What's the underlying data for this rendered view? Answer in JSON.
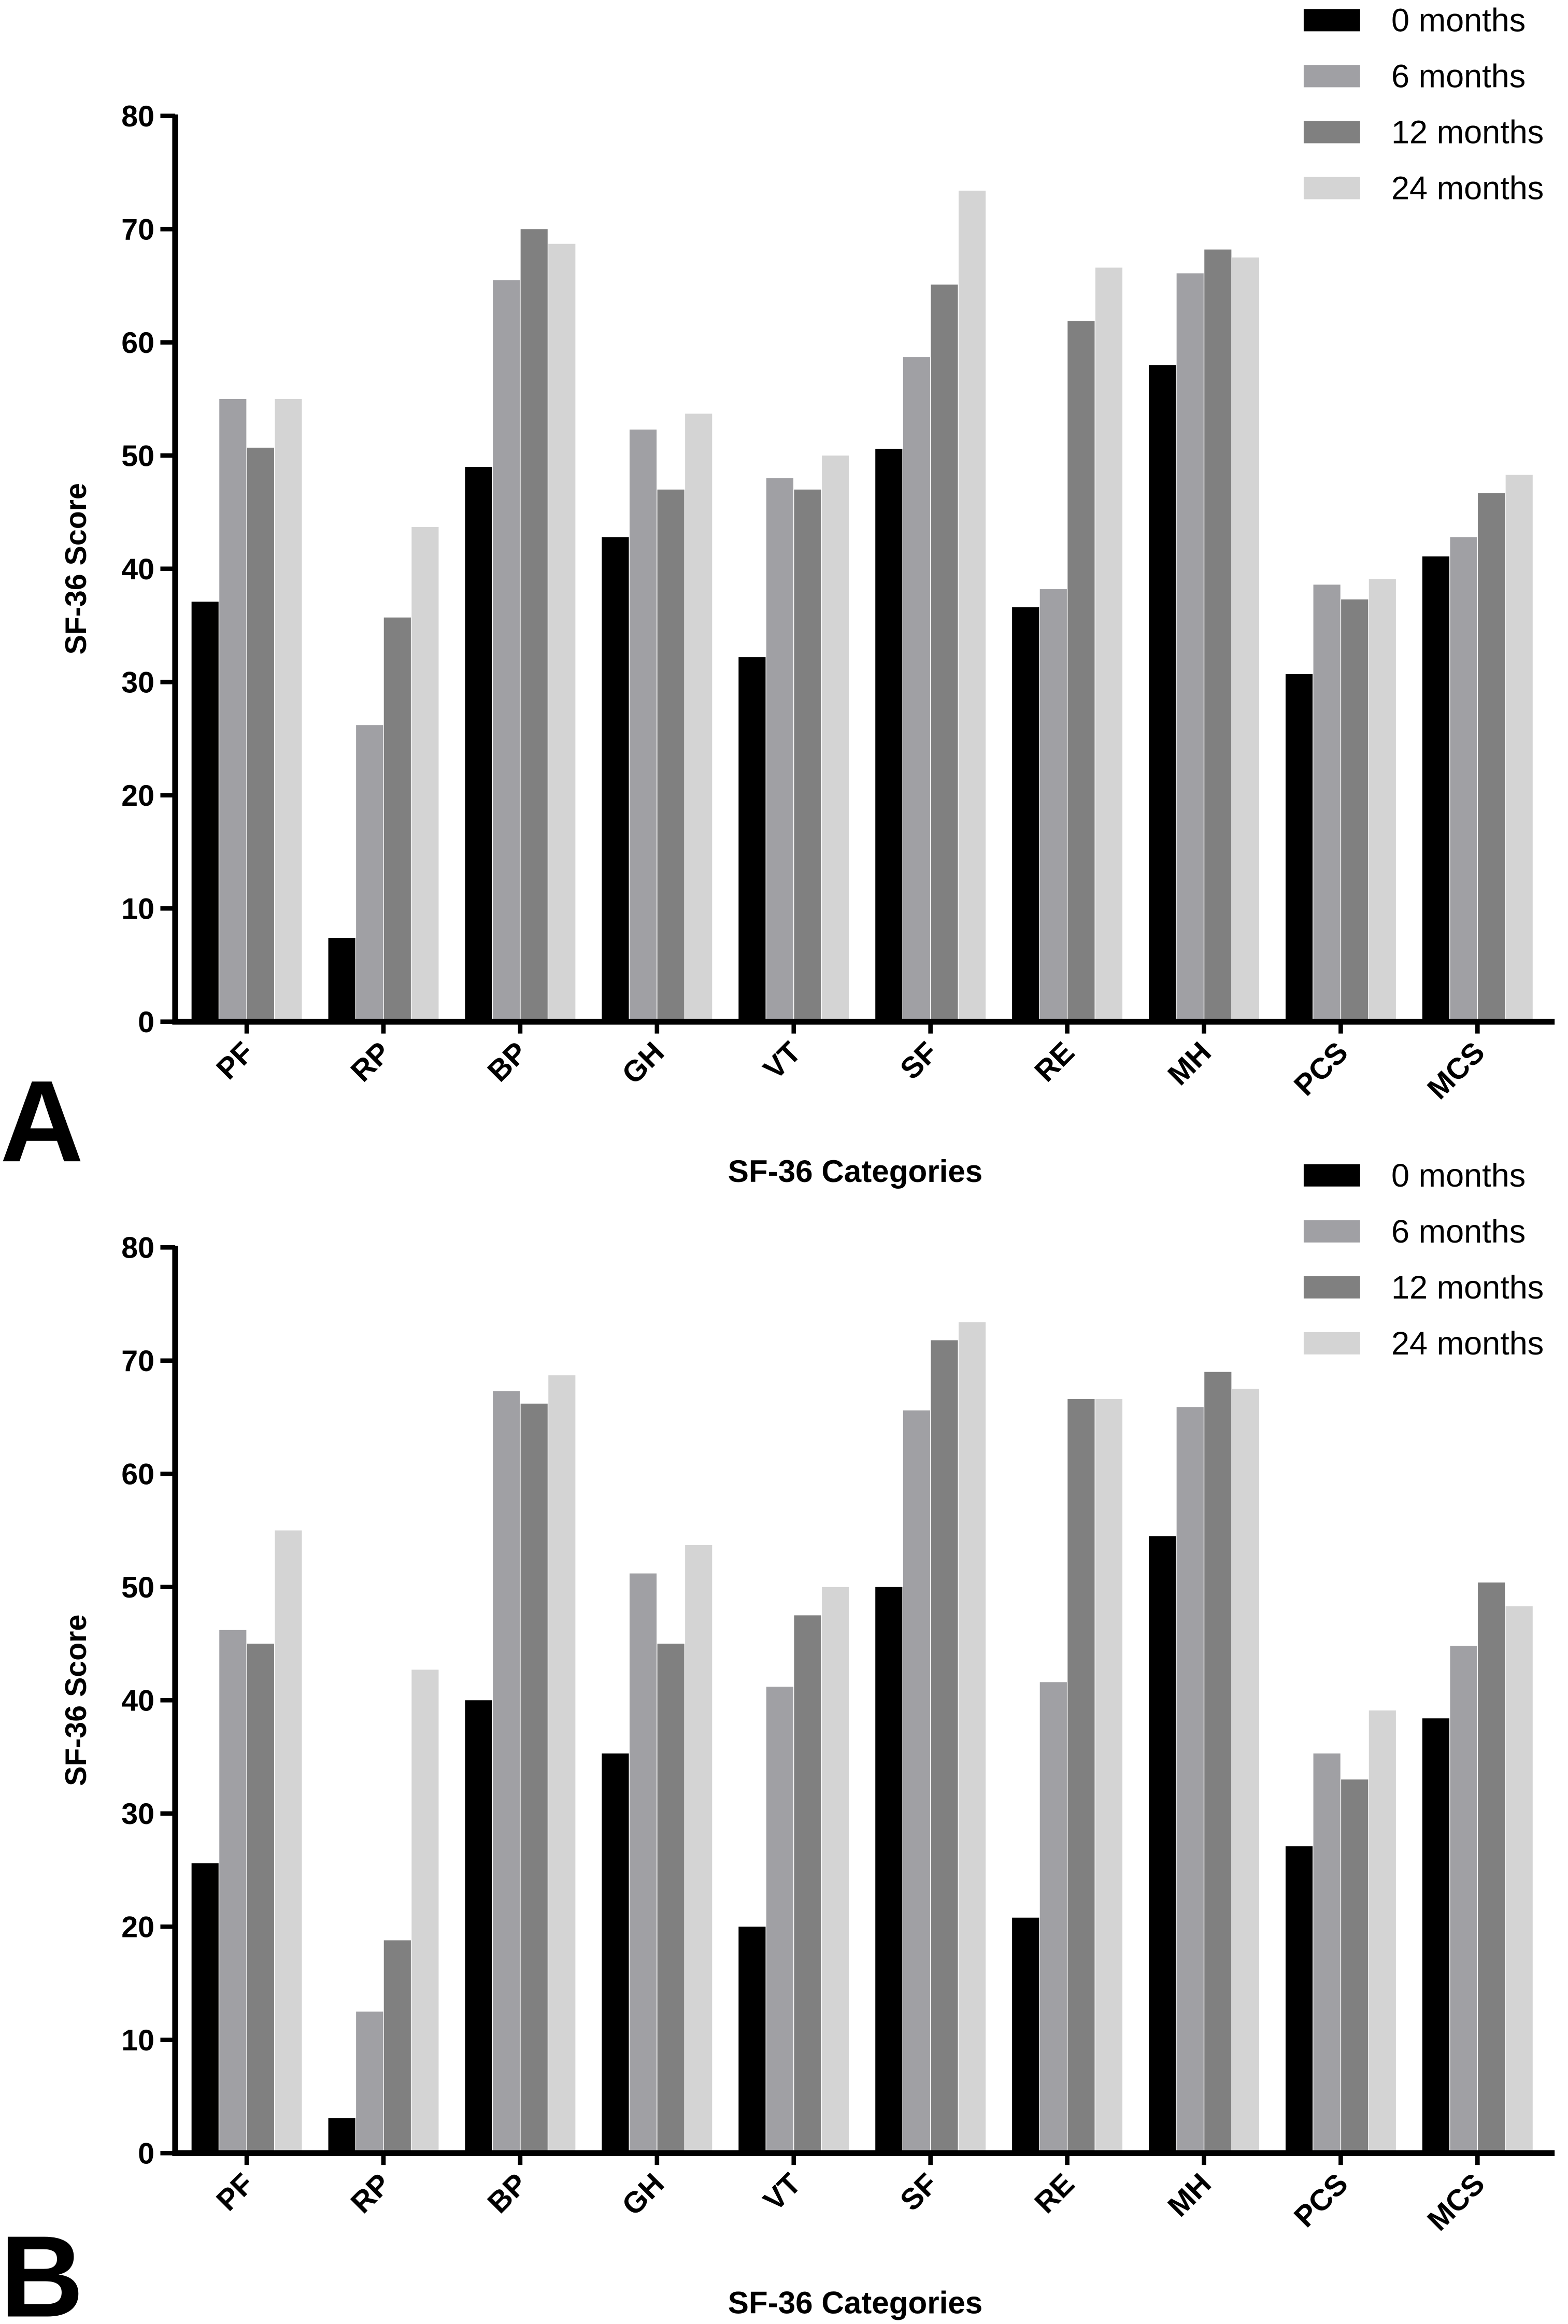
{
  "chart_data": [
    {
      "type": "bar",
      "panel_label": "A",
      "xlabel": "SF-36 Categories",
      "ylabel": "SF-36 Score",
      "ylim": [
        0,
        80
      ],
      "yticks": [
        0,
        10,
        20,
        30,
        40,
        50,
        60,
        70,
        80
      ],
      "legend_position": "top-right",
      "categories": [
        "PF",
        "RP",
        "BP",
        "GH",
        "VT",
        "SF",
        "RE",
        "MH",
        "PCS",
        "MCS"
      ],
      "series": [
        {
          "name": "0 months",
          "color": "#000000",
          "values": [
            37.1,
            7.4,
            49.0,
            42.8,
            32.2,
            50.6,
            36.6,
            58.0,
            30.7,
            41.1
          ]
        },
        {
          "name": "6 months",
          "color": "#a0a0a4",
          "values": [
            55.0,
            26.2,
            65.5,
            52.3,
            48.0,
            58.7,
            38.2,
            66.1,
            38.6,
            42.8
          ]
        },
        {
          "name": "12 months",
          "color": "#808080",
          "values": [
            50.7,
            35.7,
            70.0,
            47.0,
            47.0,
            65.1,
            61.9,
            68.2,
            37.3,
            46.7
          ]
        },
        {
          "name": "24 months",
          "color": "#d4d4d4",
          "values": [
            55.0,
            43.7,
            68.7,
            53.7,
            50.0,
            73.4,
            66.6,
            67.5,
            39.1,
            48.3
          ]
        }
      ]
    },
    {
      "type": "bar",
      "panel_label": "B",
      "xlabel": "SF-36 Categories",
      "ylabel": "SF-36 Score",
      "ylim": [
        0,
        80
      ],
      "yticks": [
        0,
        10,
        20,
        30,
        40,
        50,
        60,
        70,
        80
      ],
      "legend_position": "top-right",
      "categories": [
        "PF",
        "RP",
        "BP",
        "GH",
        "VT",
        "SF",
        "RE",
        "MH",
        "PCS",
        "MCS"
      ],
      "series": [
        {
          "name": "0 months",
          "color": "#000000",
          "values": [
            25.6,
            3.1,
            40.0,
            35.3,
            20.0,
            50.0,
            20.8,
            54.5,
            27.1,
            38.4
          ]
        },
        {
          "name": "6 months",
          "color": "#a0a0a4",
          "values": [
            46.2,
            12.5,
            67.3,
            51.2,
            41.2,
            65.6,
            41.6,
            65.9,
            35.3,
            44.8
          ]
        },
        {
          "name": "12 months",
          "color": "#808080",
          "values": [
            45.0,
            18.8,
            66.2,
            45.0,
            47.5,
            71.8,
            66.6,
            69.0,
            33.0,
            50.4
          ]
        },
        {
          "name": "24 months",
          "color": "#d4d4d4",
          "values": [
            55.0,
            42.7,
            68.7,
            53.7,
            50.0,
            73.4,
            66.6,
            67.5,
            39.1,
            48.3
          ]
        }
      ]
    }
  ]
}
